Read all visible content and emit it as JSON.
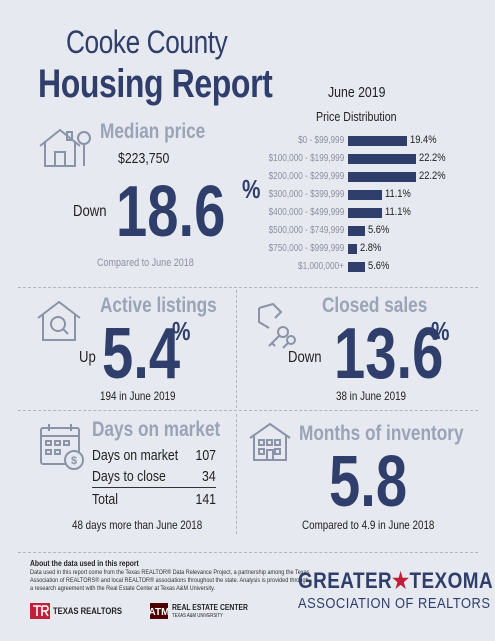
{
  "header": {
    "title_line1": "Cooke County",
    "title_line2": "Housing Report",
    "date": "June 2019"
  },
  "median_price": {
    "label": "Median price",
    "value": "$223,750",
    "direction": "Down",
    "change": "18.6",
    "percent_sign": "%",
    "note": "Compared to June 2018",
    "icon": "house-icon"
  },
  "price_distribution": {
    "title": "Price Distribution",
    "chart_data": {
      "type": "bar",
      "orientation": "horizontal",
      "title": "Price Distribution",
      "categories": [
        "$0 - $99,999",
        "$100,000 - $199,999",
        "$200,000 - $299,999",
        "$300,000 - $399,999",
        "$400,000 - $499,999",
        "$500,000 - $749,999",
        "$750,000 - $999,999",
        "$1,000,000+"
      ],
      "values": [
        19.4,
        22.2,
        22.2,
        11.1,
        11.1,
        5.6,
        2.8,
        5.6
      ],
      "value_labels": [
        "19.4%",
        "22.2%",
        "22.2%",
        "11.1%",
        "11.1%",
        "5.6%",
        "2.8%",
        "5.6%"
      ],
      "xlim": [
        0,
        22.2
      ],
      "grid": false,
      "bar_color": "#2f3e6b"
    }
  },
  "active_listings": {
    "label": "Active listings",
    "direction": "Up",
    "change": "5.4",
    "percent_sign": "%",
    "note": "194 in June 2019",
    "icon": "house-search-icon"
  },
  "closed_sales": {
    "label": "Closed sales",
    "direction": "Down",
    "change": "13.6",
    "percent_sign": "%",
    "note": "38 in June 2019",
    "icon": "hand-key-icon"
  },
  "days_on_market": {
    "label": "Days on market",
    "rows": [
      {
        "label": "Days on market",
        "value": "107"
      },
      {
        "label": "Days to close",
        "value": "34"
      }
    ],
    "total_label": "Total",
    "total_value": "141",
    "note": "48 days more than June 2018",
    "icon": "calendar-dollar-icon"
  },
  "months_inventory": {
    "label": "Months of inventory",
    "value": "5.8",
    "note": "Compared to 4.9 in June 2018",
    "icon": "building-icon"
  },
  "footer": {
    "about_title": "About the data used in this report",
    "about_text": "Data used in this report come from the Texas REALTOR® Data Relevance Project, a partnership among the Texas Association of REALTORS® and local REALTOR® associations throughout the state. Analysis is provided through a research agreement with the Real Estate Center at Texas A&M University.",
    "logo_texas_realtors": "TEXAS REALTORS",
    "logo_real_estate_center": "REAL ESTATE CENTER",
    "logo_real_estate_center_sub": "TEXAS A&M UNIVERSITY",
    "association_line1_a": "GREATER",
    "association_star": "★",
    "association_line1_b": "TEXOMA",
    "association_line2": "ASSOCIATION OF REALTORS"
  },
  "colors": {
    "navy": "#2f3e6b",
    "gray_label": "#9aa3b7",
    "background": "#e6e9ef",
    "accent_red": "#c0203a"
  }
}
